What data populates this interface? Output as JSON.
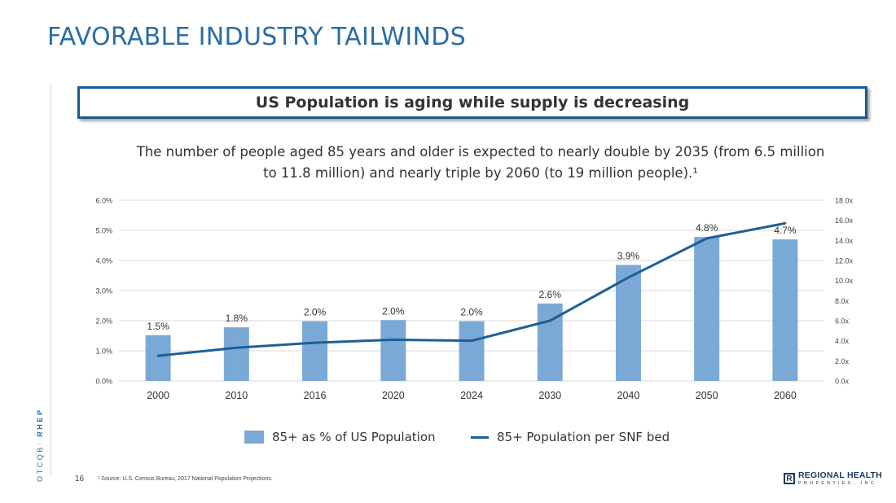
{
  "page": {
    "title": "FAVORABLE INDUSTRY TAILWINDS",
    "side_tag_prefix": "OTCQB: ",
    "side_tag_ticker": "RHEP",
    "headline": "US Population is aging while supply is decreasing",
    "lede": "The number of people aged 85 years and older is expected to nearly double by 2035 (from 6.5 million to 11.8 million) and nearly triple by 2060 (to 19 million people).¹",
    "page_number": "16",
    "footnote": "¹ Source: U.S. Census Bureau, 2017 National Population Projections.",
    "logo_mark": "R",
    "logo_main": "REGIONAL HEALTH",
    "logo_sub": "PROPERTIES, INC."
  },
  "colors": {
    "title": "#2a6ea6",
    "bar": "#7ba9d6",
    "line": "#1d5f96",
    "grid": "#d9d9d9",
    "box_border": "#1a5a8e"
  },
  "chart_data": {
    "type": "bar",
    "categories": [
      "2000",
      "2010",
      "2016",
      "2020",
      "2024",
      "2030",
      "2040",
      "2050",
      "2060"
    ],
    "series": [
      {
        "name": "85+ as % of US Population",
        "type": "bar",
        "axis": "left",
        "values": [
          1.5,
          1.8,
          2.0,
          2.0,
          2.0,
          2.6,
          3.9,
          4.8,
          4.7
        ],
        "plot_values": [
          1.52,
          1.78,
          1.98,
          2.02,
          1.98,
          2.57,
          3.85,
          4.78,
          4.7
        ],
        "labels": [
          "1.5%",
          "1.8%",
          "2.0%",
          "2.0%",
          "2.0%",
          "2.6%",
          "3.9%",
          "4.8%",
          "4.7%"
        ]
      },
      {
        "name": "85+ Population per SNF bed",
        "type": "line",
        "axis": "right",
        "values": [
          2.5,
          3.3,
          3.8,
          4.1,
          4.0,
          6.0,
          10.3,
          14.2,
          15.7
        ]
      }
    ],
    "y_left": {
      "min": 0,
      "max": 6,
      "ticks": [
        "0.0%",
        "1.0%",
        "2.0%",
        "3.0%",
        "4.0%",
        "5.0%",
        "6.0%"
      ]
    },
    "y_right": {
      "min": 0,
      "max": 18,
      "ticks": [
        "0.0x",
        "2.0x",
        "4.0x",
        "6.0x",
        "8.0x",
        "10.0x",
        "12.0x",
        "14.0x",
        "16.0x",
        "18.0x"
      ]
    },
    "grid": true,
    "legend_position": "bottom"
  }
}
